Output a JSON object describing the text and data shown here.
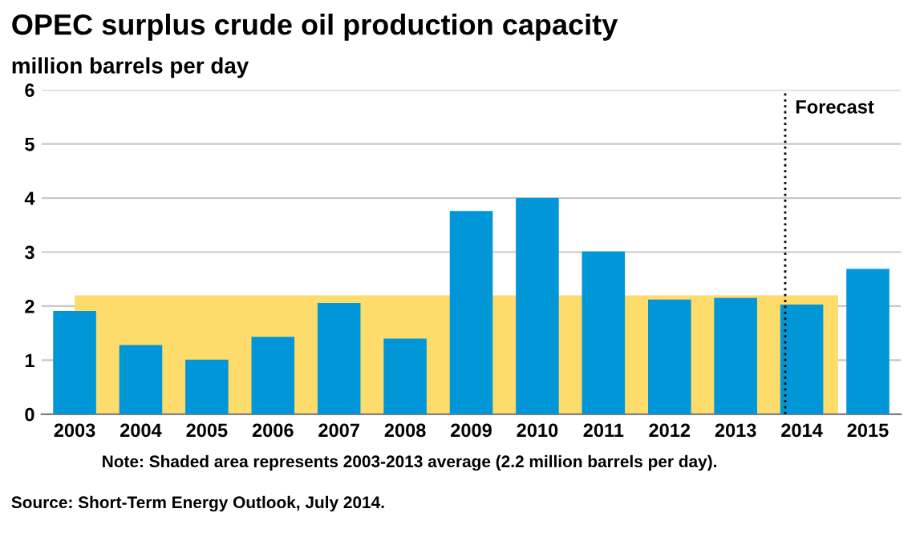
{
  "chart_data": {
    "type": "bar",
    "title": "OPEC surplus crude oil production capacity",
    "subtitle": "million barrels per day",
    "x": [
      2003,
      2004,
      2005,
      2006,
      2007,
      2008,
      2009,
      2010,
      2011,
      2012,
      2013,
      2014,
      2015
    ],
    "series": [
      {
        "type": "area",
        "color": "#fddc6c",
        "x": [
          2003,
          2014.55
        ],
        "values": [
          2.2,
          2.2
        ]
      },
      {
        "color": "#0096d7",
        "values": [
          1.91,
          1.28,
          1.01,
          1.43,
          2.06,
          1.4,
          3.76,
          4.0,
          3.01,
          2.12,
          2.15,
          2.03,
          2.69
        ]
      }
    ],
    "xlim": [
      2002.5,
      2015.5
    ],
    "xticks": [
      2003,
      2004,
      2005,
      2006,
      2007,
      2008,
      2009,
      2010,
      2011,
      2012,
      2013,
      2014,
      2015
    ],
    "ylim": [
      0,
      6
    ],
    "yticks": [
      0,
      1,
      2,
      3,
      4,
      5,
      6
    ],
    "grid": "y",
    "ref_lines": [
      {
        "axis": "x",
        "value": 2013.75,
        "label": "Forecast",
        "line_style": "dotted",
        "color": "#000000"
      }
    ],
    "annotations": [
      "Note: Shaded area represents 2003-2013 average (2.2 million barrels per day).",
      "Source: Short-Term Energy Outlook, July 2014."
    ]
  }
}
